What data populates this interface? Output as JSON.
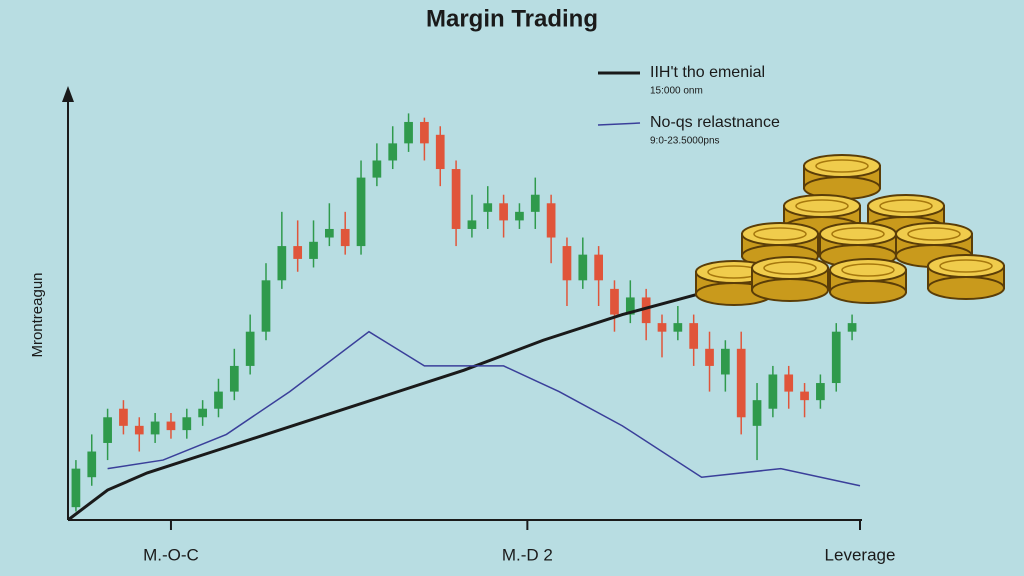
{
  "chart_data": {
    "type": "candlestick",
    "title": "Margin Trading",
    "y_label": "Mrontreagun",
    "xlim": [
      0,
      100
    ],
    "ylim": [
      0,
      100
    ],
    "xticks": [
      {
        "value": 13,
        "label": "M.-O-C"
      },
      {
        "value": 58,
        "label": "M.-D 2"
      },
      {
        "value": 100,
        "label": "Leverage"
      }
    ],
    "up_color": "#2f9a4c",
    "down_color": "#e0553a",
    "x": [
      1,
      3,
      5,
      7,
      9,
      11,
      13,
      15,
      17,
      19,
      21,
      23,
      25,
      27,
      29,
      31,
      33,
      35,
      37,
      39,
      41,
      43,
      45,
      47,
      49,
      51,
      53,
      55,
      57,
      59,
      61,
      63,
      65,
      67,
      69,
      71,
      73,
      75,
      77,
      79,
      81,
      83,
      85,
      87,
      89,
      91,
      93,
      95,
      97,
      99
    ],
    "open": [
      3,
      10,
      18,
      26,
      22,
      20,
      23,
      21,
      24,
      26,
      30,
      36,
      44,
      56,
      64,
      61,
      66,
      68,
      64,
      80,
      84,
      88,
      93,
      90,
      82,
      68,
      72,
      74,
      70,
      72,
      74,
      64,
      56,
      62,
      54,
      48,
      52,
      46,
      44,
      46,
      40,
      34,
      40,
      22,
      26,
      34,
      30,
      28,
      32,
      44
    ],
    "close": [
      12,
      16,
      24,
      22,
      20,
      23,
      21,
      24,
      26,
      30,
      36,
      44,
      56,
      64,
      61,
      65,
      68,
      64,
      80,
      84,
      88,
      93,
      88,
      82,
      68,
      70,
      74,
      70,
      72,
      76,
      66,
      56,
      62,
      56,
      48,
      52,
      46,
      44,
      46,
      40,
      36,
      40,
      24,
      28,
      34,
      30,
      28,
      32,
      44,
      46
    ],
    "high": [
      14,
      20,
      26,
      28,
      24,
      25,
      25,
      26,
      28,
      33,
      40,
      48,
      60,
      72,
      70,
      70,
      74,
      72,
      84,
      88,
      92,
      95,
      94,
      92,
      84,
      76,
      78,
      76,
      74,
      80,
      76,
      66,
      66,
      64,
      56,
      56,
      54,
      48,
      50,
      48,
      44,
      42,
      44,
      32,
      36,
      36,
      32,
      34,
      46,
      48
    ],
    "low": [
      2,
      8,
      14,
      20,
      16,
      18,
      19,
      19,
      22,
      24,
      28,
      34,
      42,
      54,
      58,
      59,
      64,
      62,
      62,
      78,
      82,
      86,
      84,
      78,
      64,
      66,
      68,
      66,
      68,
      68,
      60,
      50,
      54,
      50,
      44,
      46,
      42,
      38,
      42,
      36,
      30,
      30,
      20,
      14,
      24,
      26,
      24,
      26,
      30,
      42
    ],
    "lines": [
      {
        "name": "IIH't tho emenial",
        "note": "15:000 onm",
        "color": "#1a1a1a",
        "x": [
          0,
          5,
          10,
          20,
          30,
          40,
          50,
          60,
          70,
          80
        ],
        "values": [
          0,
          7,
          11,
          17,
          23,
          29,
          35,
          42,
          48,
          53
        ]
      },
      {
        "name": "No-qs relastnance",
        "note": "9:0-23.5000pns",
        "color": "#3a3f9a",
        "x": [
          5,
          12,
          20,
          28,
          38,
          45,
          55,
          62,
          70,
          80,
          90,
          100
        ],
        "values": [
          12,
          14,
          20,
          30,
          44,
          36,
          36,
          30,
          22,
          10,
          12,
          8
        ]
      }
    ]
  }
}
